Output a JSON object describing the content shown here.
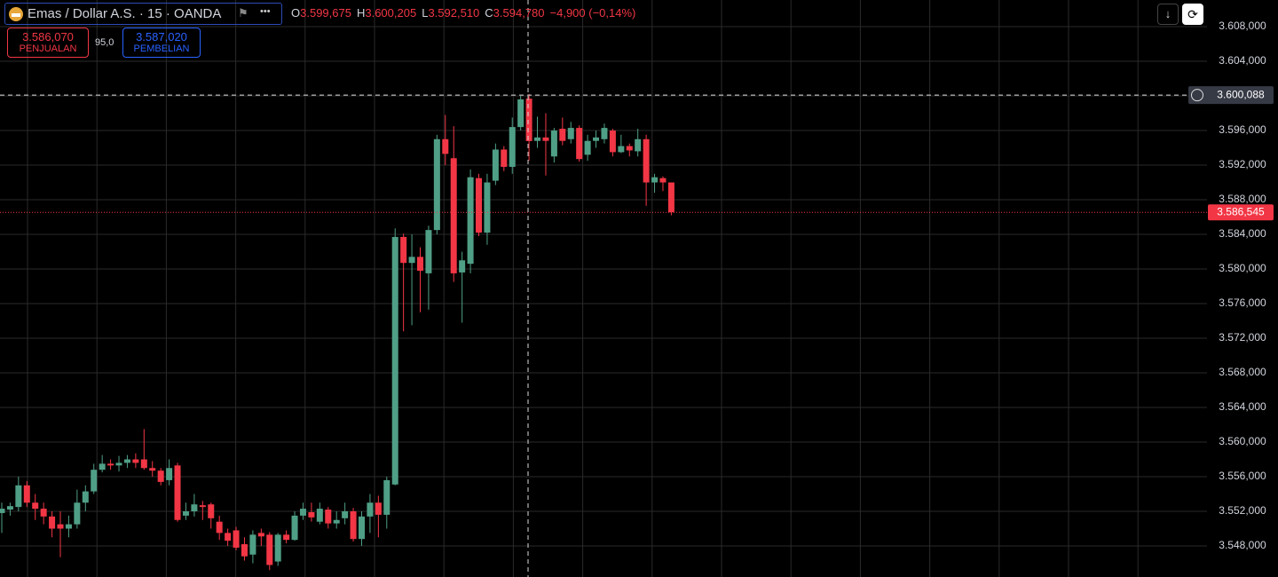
{
  "chart_data": {
    "type": "candlestick",
    "symbol": "Emas / Dollar A.S. · 15 · OANDA",
    "legend": [
      {
        "key": "O",
        "text": "3.599,675"
      },
      {
        "key": "H",
        "text": "3.600,205"
      },
      {
        "key": "L",
        "text": "3.592,510"
      },
      {
        "key": "C",
        "text": "3.594,780"
      }
    ],
    "change": "−4,900 (−0,14%)",
    "sell": {
      "price": "3.586,070",
      "label": "PENJUALAN"
    },
    "spread": "95,0",
    "buy": {
      "price": "3.587,020",
      "label": "PEMBELIAN"
    },
    "up_color": "#4f9f86",
    "down_color": "#f23645",
    "ylim": [
      3544.41,
      3611.08
    ],
    "yticks": [
      {
        "value": 3608,
        "label": "3.608,000"
      },
      {
        "value": 3604,
        "label": "3.604,000"
      },
      {
        "value": 3600,
        "label": "3.600,000"
      },
      {
        "value": 3596,
        "label": "3.596,000"
      },
      {
        "value": 3592,
        "label": "3.592,000"
      },
      {
        "value": 3588,
        "label": "3.588,000"
      },
      {
        "value": 3584,
        "label": "3.584,000"
      },
      {
        "value": 3580,
        "label": "3.580,000"
      },
      {
        "value": 3576,
        "label": "3.576,000"
      },
      {
        "value": 3572,
        "label": "3.572,000"
      },
      {
        "value": 3568,
        "label": "3.568,000"
      },
      {
        "value": 3564,
        "label": "3.564,000"
      },
      {
        "value": 3560,
        "label": "3.560,000"
      },
      {
        "value": 3556,
        "label": "3.556,000"
      },
      {
        "value": 3552,
        "label": "3.552,000"
      },
      {
        "value": 3548,
        "label": "3.548,000"
      }
    ],
    "grid": true,
    "crosshair": {
      "value": 3600.088,
      "label": "3.600,088"
    },
    "last_price": {
      "value": 3586.545,
      "label": "3.586,545"
    },
    "open": [
      3551.8,
      3552.2,
      3552.5,
      3555,
      3553,
      3552.3,
      3551.4,
      3550.5,
      3550,
      3550.5,
      3553,
      3554.3,
      3556.8,
      3557.5,
      3557.3,
      3557.6,
      3558,
      3558,
      3557,
      3556.7,
      3555.6,
      3557.3,
      3551.5,
      3552,
      3552.7,
      3552.8,
      3550.8,
      3549.5,
      3549.8,
      3548.2,
      3547,
      3549.5,
      3549.3,
      3546.2,
      3549.3,
      3548.7,
      3551.5,
      3551.9,
      3550.8,
      3552.2,
      3550.6,
      3551.2,
      3552,
      3548.8,
      3551.4,
      3553,
      3551.6,
      3555.1,
      3583.7,
      3580.7,
      3581.4,
      3579.5,
      3584.5,
      3595,
      3592.8,
      3579.6,
      3580.6,
      3590.5,
      3584.2,
      3590.2,
      3593.8,
      3591.8,
      3596.4,
      3599.675,
      3594.8,
      3595.2,
      3593,
      3596.2,
      3595,
      3596.3,
      3593.2,
      3594.8,
      3595,
      3596,
      3593.5,
      3594.2,
      3593.6,
      3595,
      3590,
      3590.5,
      3590
    ],
    "high": [
      3553,
      3553,
      3556,
      3555.5,
      3554,
      3553,
      3552,
      3552,
      3551.5,
      3554.5,
      3555,
      3557.5,
      3558.5,
      3558,
      3558.4,
      3558.5,
      3558.7,
      3561.5,
      3557.8,
      3557,
      3558,
      3557.6,
      3553,
      3554,
      3553.2,
      3553,
      3551.5,
      3550,
      3550.2,
      3549,
      3549.8,
      3550,
      3549.6,
      3549.5,
      3549.8,
      3552,
      3553,
      3553,
      3553,
      3552.5,
      3552,
      3553,
      3552.4,
      3552,
      3554,
      3553.8,
      3556,
      3584.7,
      3584.1,
      3584,
      3582.5,
      3585,
      3595.5,
      3597.8,
      3596.5,
      3582,
      3591.5,
      3591,
      3591,
      3594.5,
      3594.2,
      3597.5,
      3600,
      3600.205,
      3597.6,
      3598,
      3596.3,
      3597.5,
      3597,
      3596.6,
      3595.5,
      3596,
      3596.8,
      3596.2,
      3595.5,
      3594.5,
      3596.2,
      3595.5,
      3591,
      3590.7,
      3590
    ],
    "low": [
      3549.5,
      3551.5,
      3552,
      3552.5,
      3551,
      3550.5,
      3549,
      3546.7,
      3549,
      3550,
      3552,
      3554,
      3556.5,
      3556.8,
      3556.6,
      3557,
      3557,
      3556.8,
      3556,
      3555,
      3555,
      3550.8,
      3551,
      3551.4,
      3551,
      3550,
      3548.7,
      3548,
      3547.5,
      3546.3,
      3546,
      3548,
      3545.2,
      3545.7,
      3548.3,
      3548.6,
      3551,
      3550.8,
      3550.5,
      3550,
      3550,
      3550.5,
      3548.5,
      3548,
      3549.5,
      3549,
      3550,
      3555,
      3572.8,
      3573.5,
      3575,
      3575.3,
      3584,
      3592,
      3578.5,
      3573.8,
      3579.5,
      3583.8,
      3582.8,
      3589.7,
      3591.3,
      3591,
      3596,
      3592.51,
      3594,
      3590.8,
      3592.3,
      3594.3,
      3594.5,
      3592.4,
      3592.5,
      3594,
      3594.5,
      3593,
      3593.4,
      3593,
      3593,
      3587.3,
      3588.8,
      3589,
      3586.2
    ],
    "close": [
      3552.3,
      3552.6,
      3555,
      3553,
      3552.3,
      3551.4,
      3550,
      3550,
      3550.5,
      3553,
      3554.3,
      3556.8,
      3557.5,
      3557.3,
      3557.6,
      3558,
      3557.6,
      3557,
      3556.7,
      3555.4,
      3557,
      3551,
      3552,
      3552.8,
      3552.5,
      3551.2,
      3549.5,
      3548.6,
      3547.8,
      3546.8,
      3549.3,
      3549.1,
      3545.8,
      3549.3,
      3548.7,
      3551.5,
      3552.3,
      3551.3,
      3552.3,
      3550.6,
      3551,
      3552,
      3548.8,
      3551.4,
      3553,
      3551.6,
      3555.6,
      3583.7,
      3580.7,
      3581.4,
      3579.8,
      3584.5,
      3595,
      3593.3,
      3579.5,
      3581,
      3590.6,
      3584.2,
      3590,
      3593.8,
      3591.8,
      3596.4,
      3599.6,
      3594.78,
      3595.2,
      3594.8,
      3596,
      3594.8,
      3596.3,
      3592.7,
      3594.8,
      3595.2,
      3596.3,
      3593.5,
      3594.2,
      3593.7,
      3595,
      3590,
      3590.6,
      3590,
      3586.545
    ]
  }
}
